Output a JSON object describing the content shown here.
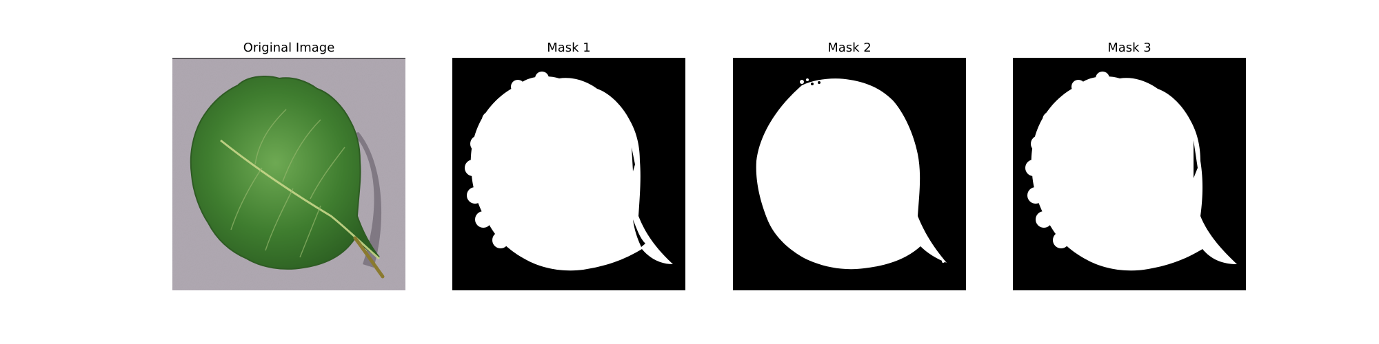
{
  "panels": [
    {
      "title": "Original Image"
    },
    {
      "title": "Mask 1"
    },
    {
      "title": "Mask 2"
    },
    {
      "title": "Mask 3"
    }
  ],
  "colors": {
    "background": "#b0a9b2",
    "leaf": "#3f7d2f",
    "leaf_light": "#5f9a45",
    "vein": "#c8d68a",
    "mask_bg": "#000000",
    "mask_fg": "#ffffff"
  }
}
